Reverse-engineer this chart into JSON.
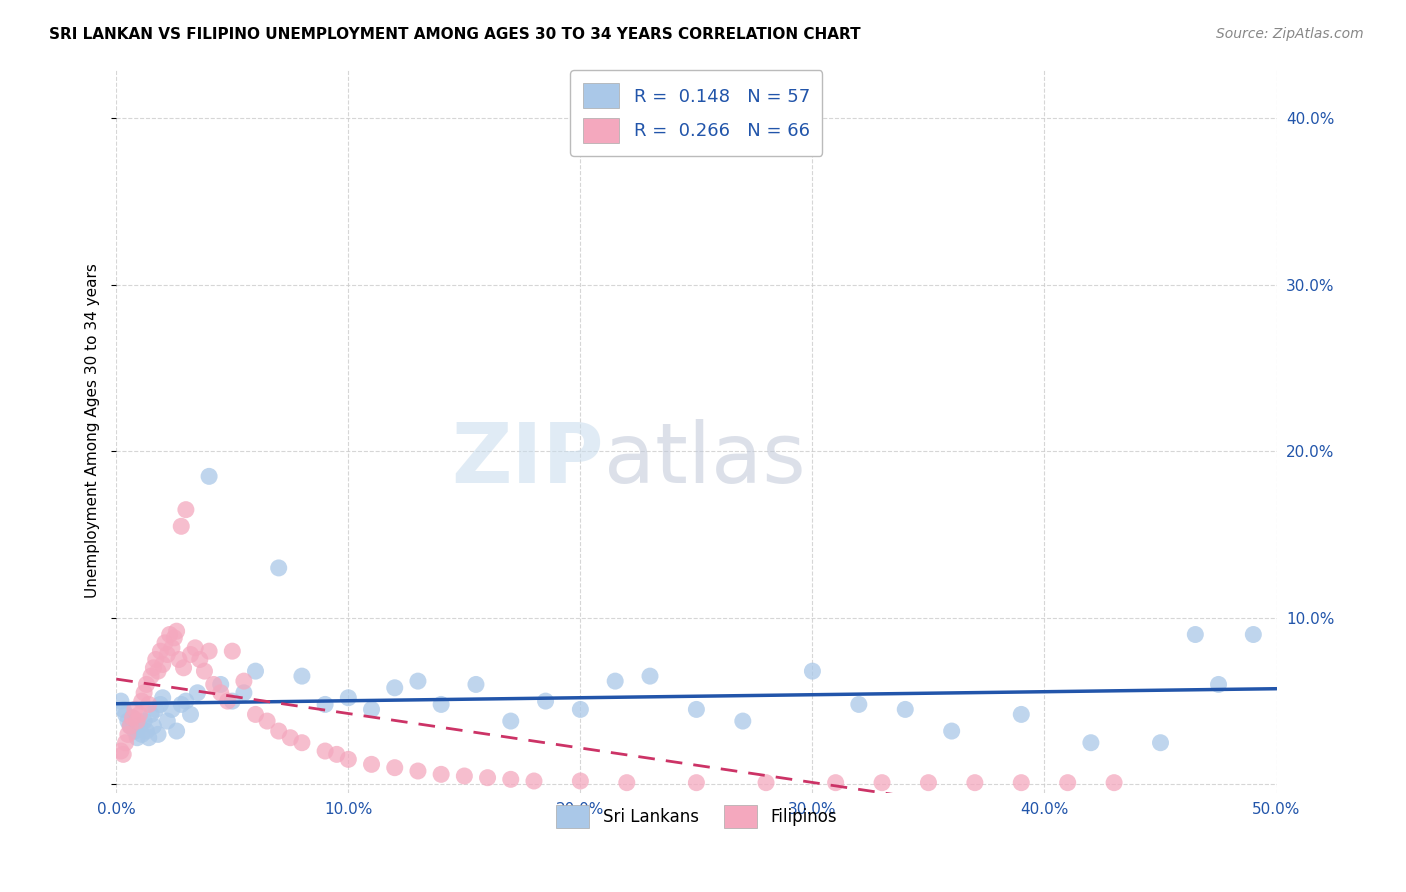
{
  "title": "SRI LANKAN VS FILIPINO UNEMPLOYMENT AMONG AGES 30 TO 34 YEARS CORRELATION CHART",
  "source": "Source: ZipAtlas.com",
  "ylabel": "Unemployment Among Ages 30 to 34 years",
  "xlim": [
    0.0,
    0.5
  ],
  "ylim": [
    -0.005,
    0.43
  ],
  "xticks": [
    0.0,
    0.1,
    0.2,
    0.3,
    0.4,
    0.5
  ],
  "yticks": [
    0.0,
    0.1,
    0.2,
    0.3,
    0.4
  ],
  "xticklabels": [
    "0.0%",
    "10.0%",
    "20.0%",
    "30.0%",
    "40.0%",
    "50.0%"
  ],
  "yticklabels_right": [
    "",
    "10.0%",
    "20.0%",
    "30.0%",
    "40.0%"
  ],
  "sri_color": "#aac8e8",
  "fil_color": "#f4a8be",
  "sri_line_color": "#2255aa",
  "fil_line_color": "#cc3366",
  "r_sri": 0.148,
  "n_sri": 57,
  "r_fil": 0.266,
  "n_fil": 66,
  "watermark_zip": "ZIP",
  "watermark_atlas": "atlas",
  "bg_color": "#ffffff",
  "grid_color": "#cccccc",
  "sri_x": [
    0.002,
    0.003,
    0.004,
    0.005,
    0.006,
    0.007,
    0.008,
    0.009,
    0.01,
    0.011,
    0.012,
    0.013,
    0.014,
    0.015,
    0.016,
    0.017,
    0.018,
    0.019,
    0.02,
    0.022,
    0.024,
    0.026,
    0.028,
    0.03,
    0.032,
    0.035,
    0.04,
    0.045,
    0.05,
    0.055,
    0.06,
    0.07,
    0.08,
    0.09,
    0.1,
    0.11,
    0.12,
    0.13,
    0.14,
    0.155,
    0.17,
    0.185,
    0.2,
    0.215,
    0.23,
    0.25,
    0.27,
    0.3,
    0.32,
    0.34,
    0.36,
    0.39,
    0.42,
    0.45,
    0.465,
    0.475,
    0.49
  ],
  "sri_y": [
    0.05,
    0.045,
    0.042,
    0.038,
    0.035,
    0.04,
    0.032,
    0.028,
    0.035,
    0.03,
    0.038,
    0.032,
    0.028,
    0.042,
    0.035,
    0.045,
    0.03,
    0.048,
    0.052,
    0.038,
    0.045,
    0.032,
    0.048,
    0.05,
    0.042,
    0.055,
    0.185,
    0.06,
    0.05,
    0.055,
    0.068,
    0.13,
    0.065,
    0.048,
    0.052,
    0.045,
    0.058,
    0.062,
    0.048,
    0.06,
    0.038,
    0.05,
    0.045,
    0.062,
    0.065,
    0.045,
    0.038,
    0.068,
    0.048,
    0.045,
    0.032,
    0.042,
    0.025,
    0.025,
    0.09,
    0.06,
    0.09
  ],
  "fil_x": [
    0.002,
    0.003,
    0.004,
    0.005,
    0.006,
    0.007,
    0.008,
    0.009,
    0.01,
    0.011,
    0.012,
    0.013,
    0.014,
    0.015,
    0.016,
    0.017,
    0.018,
    0.019,
    0.02,
    0.021,
    0.022,
    0.023,
    0.024,
    0.025,
    0.026,
    0.027,
    0.028,
    0.029,
    0.03,
    0.032,
    0.034,
    0.036,
    0.038,
    0.04,
    0.042,
    0.045,
    0.048,
    0.05,
    0.055,
    0.06,
    0.065,
    0.07,
    0.075,
    0.08,
    0.09,
    0.095,
    0.1,
    0.11,
    0.12,
    0.13,
    0.14,
    0.15,
    0.16,
    0.17,
    0.18,
    0.2,
    0.22,
    0.25,
    0.28,
    0.31,
    0.33,
    0.35,
    0.37,
    0.39,
    0.41,
    0.43
  ],
  "fil_y": [
    0.02,
    0.018,
    0.025,
    0.03,
    0.035,
    0.04,
    0.045,
    0.038,
    0.042,
    0.05,
    0.055,
    0.06,
    0.048,
    0.065,
    0.07,
    0.075,
    0.068,
    0.08,
    0.072,
    0.085,
    0.078,
    0.09,
    0.082,
    0.088,
    0.092,
    0.075,
    0.155,
    0.07,
    0.165,
    0.078,
    0.082,
    0.075,
    0.068,
    0.08,
    0.06,
    0.055,
    0.05,
    0.08,
    0.062,
    0.042,
    0.038,
    0.032,
    0.028,
    0.025,
    0.02,
    0.018,
    0.015,
    0.012,
    0.01,
    0.008,
    0.006,
    0.005,
    0.004,
    0.003,
    0.002,
    0.002,
    0.001,
    0.001,
    0.001,
    0.001,
    0.001,
    0.001,
    0.001,
    0.001,
    0.001,
    0.001
  ]
}
